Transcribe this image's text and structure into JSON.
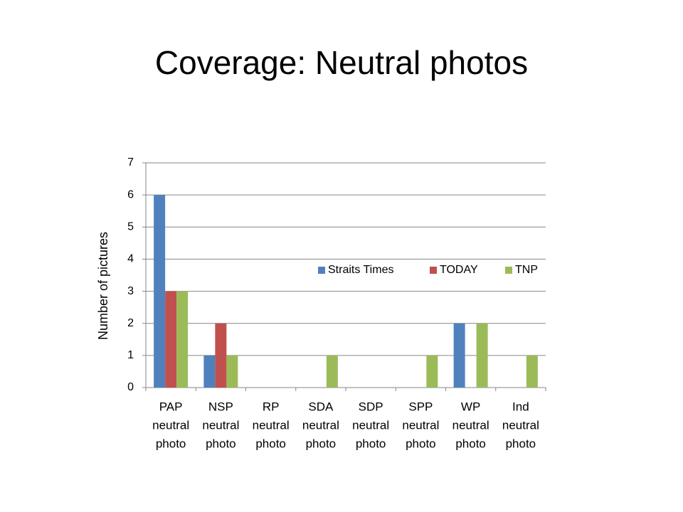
{
  "chart_data": {
    "type": "bar",
    "title": "Coverage: Neutral photos",
    "y_label": "Number of pictures",
    "categories": [
      [
        "PAP",
        "neutral",
        "photo"
      ],
      [
        "NSP",
        "neutral",
        "photo"
      ],
      [
        "RP",
        "neutral",
        "photo"
      ],
      [
        "SDA",
        "neutral",
        "photo"
      ],
      [
        "SDP",
        "neutral",
        "photo"
      ],
      [
        "SPP",
        "neutral",
        "photo"
      ],
      [
        "WP",
        "neutral",
        "photo"
      ],
      [
        "Ind",
        "neutral",
        "photo"
      ]
    ],
    "series": [
      {
        "name": "Straits Times",
        "color": "#4f81bd",
        "values": [
          6,
          1,
          0,
          0,
          0,
          0,
          2,
          0
        ]
      },
      {
        "name": "TODAY",
        "color": "#c0504d",
        "values": [
          3,
          2,
          0,
          0,
          0,
          0,
          0,
          0
        ]
      },
      {
        "name": "TNP",
        "color": "#9bbb59",
        "values": [
          3,
          1,
          0,
          1,
          0,
          1,
          2,
          1
        ]
      }
    ],
    "ylim": [
      0,
      7
    ],
    "yticks": [
      0,
      1,
      2,
      3,
      4,
      5,
      6,
      7
    ],
    "grid": true,
    "legend": "inside"
  }
}
